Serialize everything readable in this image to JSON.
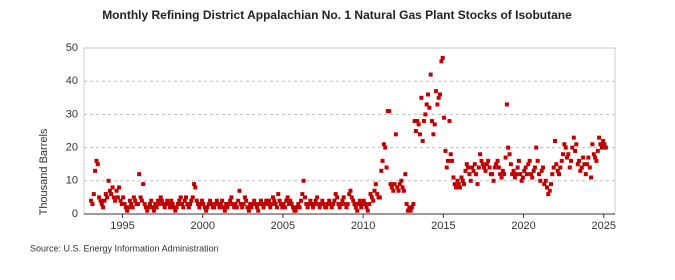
{
  "chart_data": {
    "type": "scatter",
    "title": "Monthly Refining District Appalachian No. 1 Natural Gas Plant Stocks of Isobutane",
    "y_label": "Thousand Barrels",
    "source": "Source: U.S. Energy Information Administration",
    "color": "#c00000",
    "grid": true,
    "xlim": [
      1992.6,
      2025.7
    ],
    "xticks": [
      1995,
      2000,
      2005,
      2010,
      2015,
      2020,
      2025
    ],
    "ylim": [
      0,
      50
    ],
    "yticks": [
      0,
      10,
      20,
      30,
      40,
      50
    ],
    "x": [
      1993.04,
      1993.13,
      1993.21,
      1993.29,
      1993.38,
      1993.46,
      1993.54,
      1993.63,
      1993.71,
      1993.79,
      1993.88,
      1993.96,
      1994.04,
      1994.13,
      1994.21,
      1994.29,
      1994.38,
      1994.46,
      1994.54,
      1994.63,
      1994.71,
      1994.79,
      1994.88,
      1994.96,
      1995.04,
      1995.13,
      1995.21,
      1995.29,
      1995.38,
      1995.46,
      1995.54,
      1995.63,
      1995.71,
      1995.79,
      1995.88,
      1995.96,
      1996.04,
      1996.13,
      1996.21,
      1996.29,
      1996.38,
      1996.46,
      1996.54,
      1996.63,
      1996.71,
      1996.79,
      1996.88,
      1996.96,
      1997.04,
      1997.13,
      1997.21,
      1997.29,
      1997.38,
      1997.46,
      1997.54,
      1997.63,
      1997.71,
      1997.79,
      1997.88,
      1997.96,
      1998.04,
      1998.13,
      1998.21,
      1998.29,
      1998.38,
      1998.46,
      1998.54,
      1998.63,
      1998.71,
      1998.79,
      1998.88,
      1998.96,
      1999.04,
      1999.13,
      1999.21,
      1999.29,
      1999.38,
      1999.46,
      1999.54,
      1999.63,
      1999.71,
      1999.79,
      1999.88,
      1999.96,
      2000.04,
      2000.13,
      2000.21,
      2000.29,
      2000.38,
      2000.46,
      2000.54,
      2000.63,
      2000.71,
      2000.79,
      2000.88,
      2000.96,
      2001.04,
      2001.13,
      2001.21,
      2001.29,
      2001.38,
      2001.46,
      2001.54,
      2001.63,
      2001.71,
      2001.79,
      2001.88,
      2001.96,
      2002.04,
      2002.13,
      2002.21,
      2002.29,
      2002.38,
      2002.46,
      2002.54,
      2002.63,
      2002.71,
      2002.79,
      2002.88,
      2002.96,
      2003.04,
      2003.13,
      2003.21,
      2003.29,
      2003.38,
      2003.46,
      2003.54,
      2003.63,
      2003.71,
      2003.79,
      2003.88,
      2003.96,
      2004.04,
      2004.13,
      2004.21,
      2004.29,
      2004.38,
      2004.46,
      2004.54,
      2004.63,
      2004.71,
      2004.79,
      2004.88,
      2004.96,
      2005.04,
      2005.13,
      2005.21,
      2005.29,
      2005.38,
      2005.46,
      2005.54,
      2005.63,
      2005.71,
      2005.79,
      2005.88,
      2005.96,
      2006.04,
      2006.13,
      2006.21,
      2006.29,
      2006.38,
      2006.46,
      2006.54,
      2006.63,
      2006.71,
      2006.79,
      2006.88,
      2006.96,
      2007.04,
      2007.13,
      2007.21,
      2007.29,
      2007.38,
      2007.46,
      2007.54,
      2007.63,
      2007.71,
      2007.79,
      2007.88,
      2007.96,
      2008.04,
      2008.13,
      2008.21,
      2008.29,
      2008.38,
      2008.46,
      2008.54,
      2008.63,
      2008.71,
      2008.79,
      2008.88,
      2008.96,
      2009.04,
      2009.13,
      2009.21,
      2009.29,
      2009.38,
      2009.46,
      2009.54,
      2009.63,
      2009.71,
      2009.79,
      2009.88,
      2009.96,
      2010.04,
      2010.13,
      2010.21,
      2010.29,
      2010.38,
      2010.46,
      2010.54,
      2010.63,
      2010.71,
      2010.79,
      2010.88,
      2010.96,
      2011.04,
      2011.13,
      2011.21,
      2011.29,
      2011.38,
      2011.46,
      2011.54,
      2011.63,
      2011.71,
      2011.79,
      2011.88,
      2011.96,
      2012.04,
      2012.13,
      2012.21,
      2012.29,
      2012.38,
      2012.46,
      2012.54,
      2012.63,
      2012.71,
      2012.79,
      2012.88,
      2012.96,
      2013.04,
      2013.13,
      2013.21,
      2013.29,
      2013.38,
      2013.46,
      2013.54,
      2013.63,
      2013.71,
      2013.79,
      2013.88,
      2013.96,
      2014.04,
      2014.13,
      2014.21,
      2014.29,
      2014.38,
      2014.46,
      2014.54,
      2014.63,
      2014.71,
      2014.79,
      2014.88,
      2014.96,
      2015.04,
      2015.13,
      2015.21,
      2015.29,
      2015.38,
      2015.46,
      2015.54,
      2015.63,
      2015.71,
      2015.79,
      2015.88,
      2015.96,
      2016.04,
      2016.13,
      2016.21,
      2016.29,
      2016.38,
      2016.46,
      2016.54,
      2016.63,
      2016.71,
      2016.79,
      2016.88,
      2016.96,
      2017.04,
      2017.13,
      2017.21,
      2017.29,
      2017.38,
      2017.46,
      2017.54,
      2017.63,
      2017.71,
      2017.79,
      2017.88,
      2017.96,
      2018.04,
      2018.13,
      2018.21,
      2018.29,
      2018.38,
      2018.46,
      2018.54,
      2018.63,
      2018.71,
      2018.79,
      2018.88,
      2018.96,
      2019.04,
      2019.13,
      2019.21,
      2019.29,
      2019.38,
      2019.46,
      2019.54,
      2019.63,
      2019.71,
      2019.79,
      2019.88,
      2019.96,
      2020.04,
      2020.13,
      2020.21,
      2020.29,
      2020.38,
      2020.46,
      2020.54,
      2020.63,
      2020.71,
      2020.79,
      2020.88,
      2020.96,
      2021.04,
      2021.13,
      2021.21,
      2021.29,
      2021.38,
      2021.46,
      2021.54,
      2021.63,
      2021.71,
      2021.79,
      2021.88,
      2021.96,
      2022.04,
      2022.13,
      2022.21,
      2022.29,
      2022.38,
      2022.46,
      2022.54,
      2022.63,
      2022.71,
      2022.79,
      2022.88,
      2022.96,
      2023.04,
      2023.13,
      2023.21,
      2023.29,
      2023.38,
      2023.46,
      2023.54,
      2023.63,
      2023.71,
      2023.79,
      2023.88,
      2023.96,
      2024.04,
      2024.13,
      2024.21,
      2024.29,
      2024.38,
      2024.46,
      2024.54,
      2024.63,
      2024.71,
      2024.79,
      2024.88,
      2024.96,
      2025.04,
      2025.13
    ],
    "values": [
      4,
      3,
      6,
      13,
      16,
      15,
      5,
      4,
      3,
      2,
      4,
      6,
      5,
      10,
      7,
      6,
      8,
      5,
      4,
      7,
      5,
      8,
      4,
      3,
      5,
      3,
      2,
      1,
      2,
      4,
      3,
      2,
      5,
      4,
      3,
      3,
      12,
      5,
      4,
      9,
      3,
      2,
      1,
      2,
      3,
      4,
      2,
      1,
      3,
      2,
      4,
      3,
      5,
      4,
      3,
      2,
      3,
      4,
      3,
      2,
      4,
      3,
      2,
      1,
      2,
      3,
      4,
      5,
      3,
      2,
      4,
      5,
      3,
      2,
      3,
      4,
      5,
      9,
      8,
      4,
      3,
      2,
      3,
      4,
      3,
      2,
      1,
      2,
      3,
      4,
      3,
      2,
      2,
      3,
      4,
      3,
      2,
      3,
      4,
      2,
      1,
      3,
      2,
      3,
      4,
      5,
      3,
      2,
      3,
      2,
      4,
      7,
      3,
      2,
      3,
      5,
      4,
      2,
      1,
      3,
      2,
      3,
      4,
      3,
      2,
      1,
      3,
      4,
      3,
      2,
      3,
      4,
      3,
      4,
      2,
      3,
      5,
      4,
      3,
      2,
      6,
      4,
      3,
      2,
      3,
      2,
      4,
      5,
      3,
      4,
      3,
      2,
      1,
      1,
      2,
      3,
      2,
      4,
      6,
      10,
      5,
      3,
      2,
      3,
      4,
      3,
      2,
      3,
      4,
      5,
      3,
      2,
      3,
      4,
      3,
      2,
      2,
      3,
      4,
      3,
      2,
      3,
      4,
      6,
      5,
      3,
      2,
      3,
      4,
      5,
      3,
      2,
      3,
      6,
      7,
      5,
      4,
      3,
      2,
      1,
      3,
      4,
      2,
      3,
      4,
      3,
      2,
      1,
      3,
      6,
      5,
      4,
      7,
      9,
      6,
      5,
      5,
      13,
      16,
      21,
      20,
      14,
      31,
      31,
      9,
      8,
      7,
      9,
      24,
      8,
      7,
      9,
      10,
      8,
      7,
      12,
      3,
      1,
      2,
      1,
      2,
      3,
      28,
      25,
      28,
      27,
      24,
      35,
      22,
      28,
      30,
      33,
      36,
      32,
      42,
      28,
      24,
      27,
      37,
      33,
      35,
      36,
      46,
      47,
      29,
      19,
      14,
      16,
      28,
      18,
      16,
      11,
      9,
      8,
      10,
      9,
      8,
      11,
      10,
      9,
      13,
      15,
      14,
      12,
      10,
      14,
      13,
      15,
      12,
      9,
      14,
      18,
      16,
      15,
      14,
      13,
      15,
      16,
      14,
      12,
      12,
      10,
      14,
      15,
      16,
      14,
      12,
      11,
      13,
      12,
      17,
      33,
      20,
      18,
      15,
      12,
      13,
      11,
      12,
      14,
      16,
      12,
      10,
      11,
      13,
      14,
      12,
      15,
      16,
      12,
      11,
      13,
      14,
      20,
      16,
      12,
      10,
      13,
      14,
      9,
      10,
      8,
      6,
      7,
      9,
      12,
      14,
      22,
      15,
      13,
      12,
      14,
      16,
      18,
      21,
      20,
      17,
      18,
      14,
      16,
      20,
      23,
      19,
      21,
      15,
      16,
      13,
      14,
      17,
      15,
      12,
      15,
      17,
      14,
      11,
      21,
      18,
      17,
      16,
      19,
      23,
      21,
      20,
      22,
      21,
      20
    ]
  }
}
